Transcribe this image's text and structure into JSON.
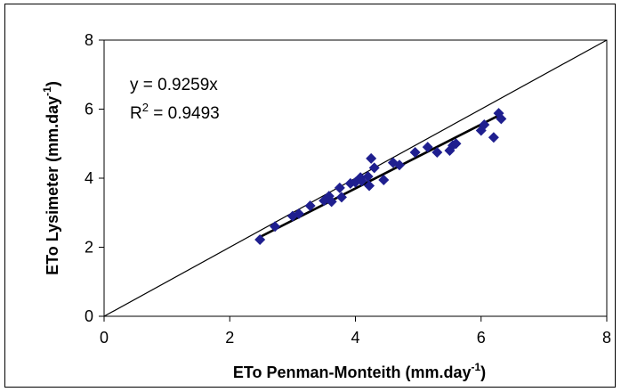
{
  "chart_data": {
    "type": "scatter",
    "xlabel": {
      "text": "ETo Penman-Monteith (mm.day",
      "sup": "-1",
      "tail": ")"
    },
    "ylabel": {
      "text": "ETo Lysimeter (mm.day",
      "sup": "-1",
      "tail": ")"
    },
    "xlim": [
      0,
      8
    ],
    "ylim": [
      0,
      8
    ],
    "xticks": [
      "0",
      "2",
      "4",
      "6",
      "8"
    ],
    "yticks": [
      "0",
      "2",
      "4",
      "6",
      "8"
    ],
    "grid": false,
    "marker_color": "#1f1f8f",
    "equation": "y = 0.9259x",
    "r2": {
      "base": "R",
      "sup": "2",
      "rest": " = 0.9493"
    },
    "regression": {
      "slope": 0.9259,
      "x_range": [
        2.5,
        6.3
      ]
    },
    "reference_line": {
      "from": [
        0,
        0
      ],
      "to": [
        8,
        8
      ]
    },
    "points": [
      [
        2.48,
        2.22
      ],
      [
        2.72,
        2.6
      ],
      [
        3.0,
        2.9
      ],
      [
        3.1,
        2.97
      ],
      [
        3.28,
        3.2
      ],
      [
        3.5,
        3.35
      ],
      [
        3.58,
        3.48
      ],
      [
        3.62,
        3.32
      ],
      [
        3.75,
        3.72
      ],
      [
        3.78,
        3.45
      ],
      [
        3.92,
        3.85
      ],
      [
        4.0,
        3.88
      ],
      [
        4.08,
        4.02
      ],
      [
        4.1,
        3.92
      ],
      [
        4.2,
        4.05
      ],
      [
        4.22,
        3.78
      ],
      [
        4.25,
        4.57
      ],
      [
        4.3,
        4.3
      ],
      [
        4.45,
        3.95
      ],
      [
        4.6,
        4.45
      ],
      [
        4.7,
        4.38
      ],
      [
        4.95,
        4.75
      ],
      [
        5.15,
        4.9
      ],
      [
        5.3,
        4.75
      ],
      [
        5.5,
        4.8
      ],
      [
        5.55,
        4.95
      ],
      [
        5.6,
        5.0
      ],
      [
        6.0,
        5.38
      ],
      [
        6.05,
        5.55
      ],
      [
        6.2,
        5.18
      ],
      [
        6.28,
        5.88
      ],
      [
        6.32,
        5.72
      ]
    ]
  }
}
